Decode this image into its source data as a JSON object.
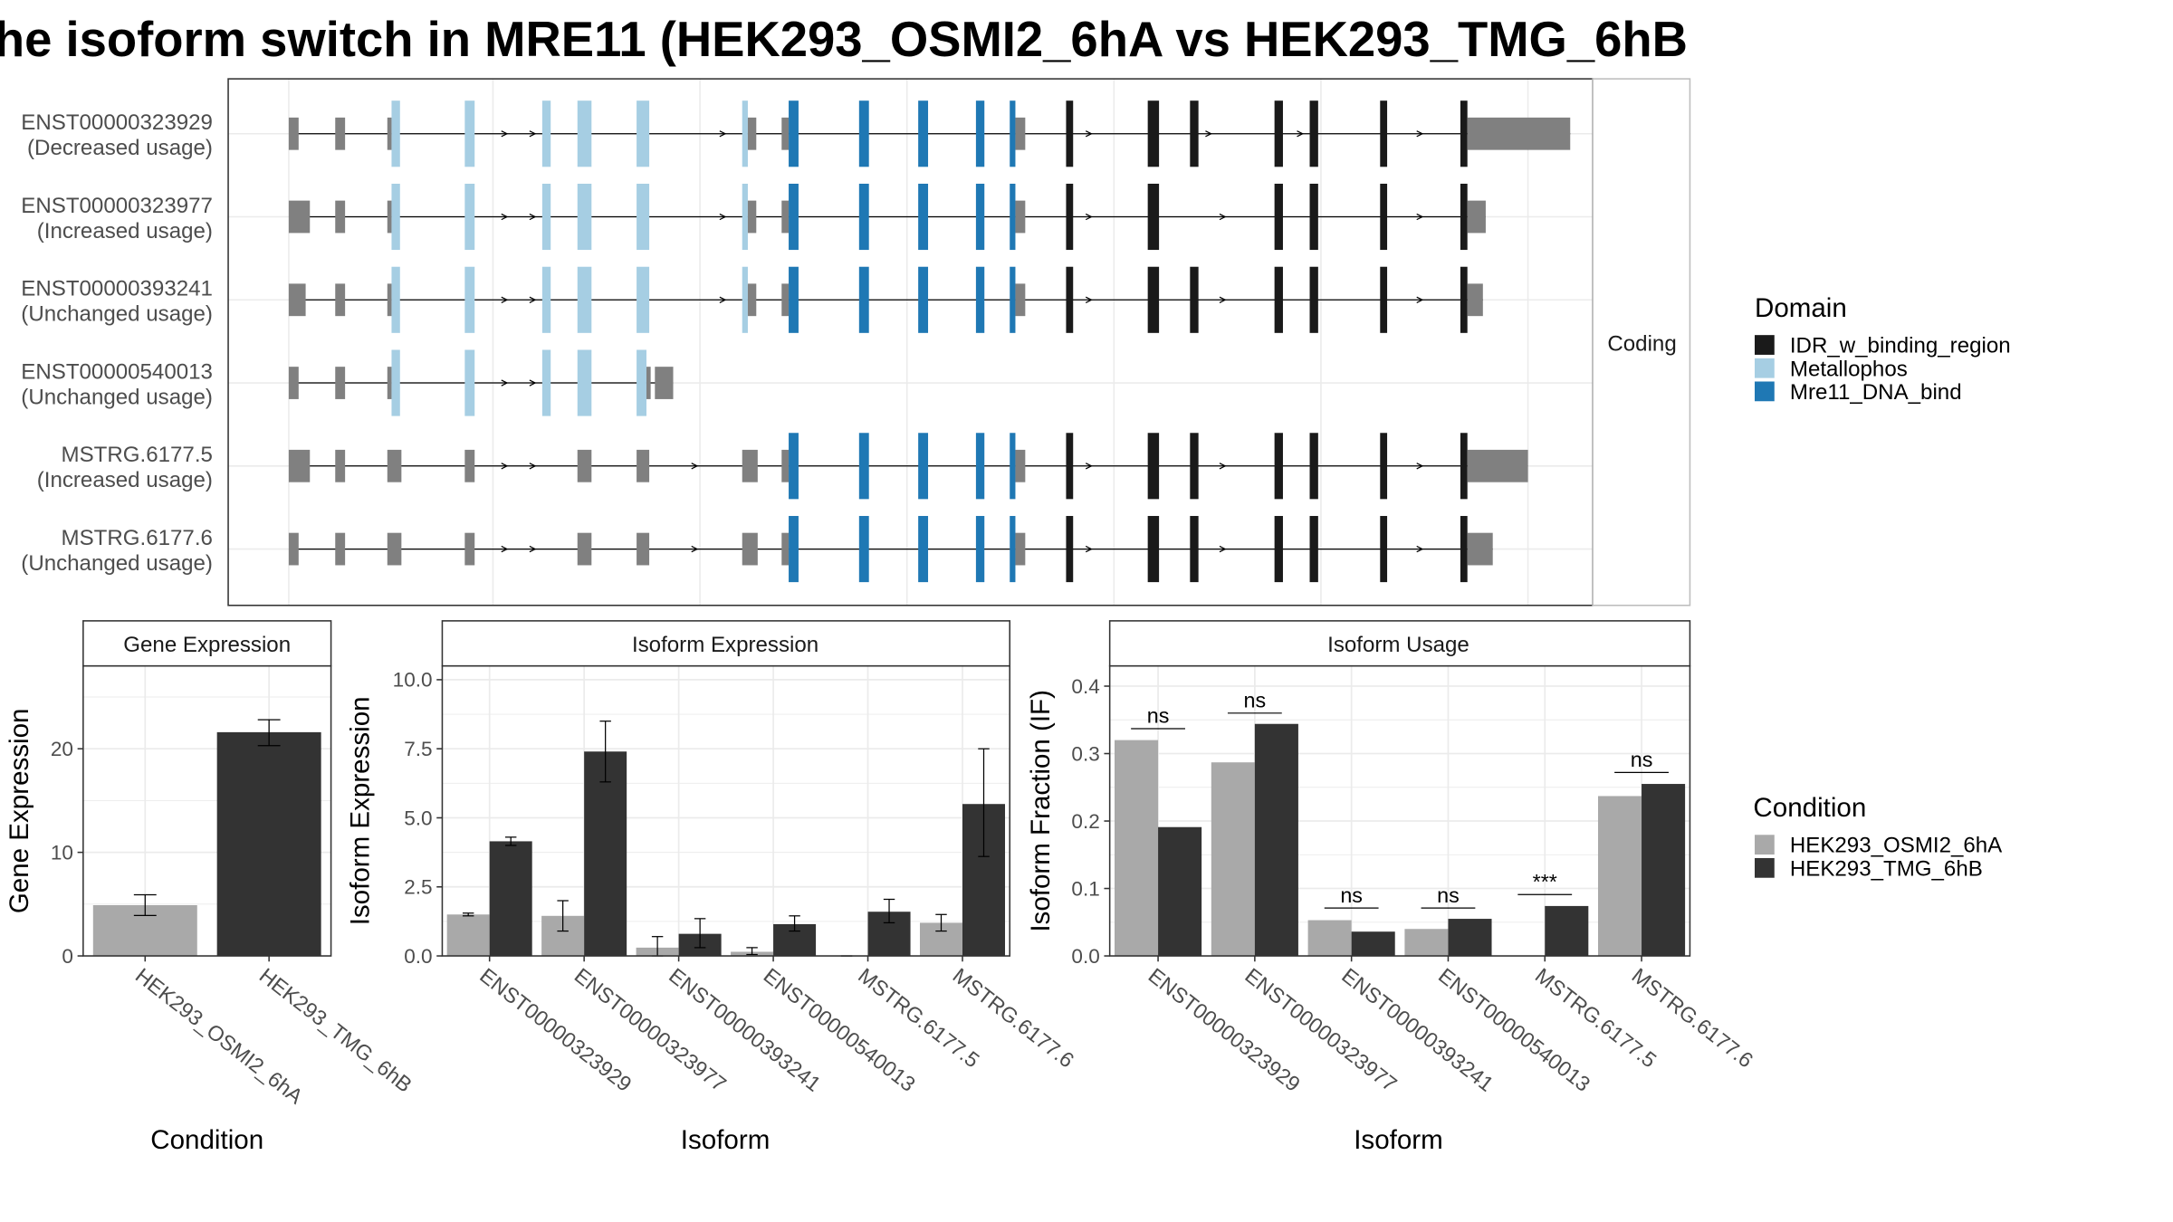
{
  "title": "he isoform switch in MRE11 (HEK293_OSMI2_6hA vs HEK293_TMG_6hB",
  "colors": {
    "IDR_w_binding_region": "#1a1a1a",
    "Metallophos": "#a6cee3",
    "Mre11_DNA_bind": "#1f78b4",
    "utr": "#808080",
    "cond_A": "#a9a9a9",
    "cond_B": "#333333",
    "strip_fill": "#ffffff",
    "grid": "#ebebeb"
  },
  "transcripts": {
    "facet_label": "Coding",
    "legend_title": "Domain",
    "legend_items": [
      "IDR_w_binding_region",
      "Metallophos",
      "Mre11_DNA_bind"
    ],
    "rows": [
      {
        "id": "ENST00000323929",
        "status": "(Decreased usage)",
        "exons": [
          [
            0,
            0.7,
            "u"
          ],
          [
            3.3,
            4.0,
            "u"
          ],
          [
            7.0,
            7.3,
            "u"
          ],
          [
            7.3,
            7.9,
            "M"
          ],
          [
            12.5,
            13.2,
            "M"
          ],
          [
            18.0,
            18.6,
            "M"
          ],
          [
            20.5,
            21.5,
            "M"
          ],
          [
            24.7,
            25.6,
            "M"
          ],
          [
            32.2,
            32.6,
            "M"
          ],
          [
            32.6,
            33.2,
            "u"
          ],
          [
            35.0,
            35.5,
            "u"
          ],
          [
            35.5,
            36.2,
            "D"
          ],
          [
            40.5,
            41.2,
            "D"
          ],
          [
            44.7,
            45.4,
            "D"
          ],
          [
            48.8,
            49.4,
            "D"
          ],
          [
            51.2,
            51.6,
            "D"
          ],
          [
            51.6,
            52.3,
            "u"
          ],
          [
            55.2,
            55.7,
            "I"
          ],
          [
            61.0,
            61.8,
            "I"
          ],
          [
            64.0,
            64.6,
            "I"
          ],
          [
            70.0,
            70.6,
            "I"
          ],
          [
            72.5,
            73.1,
            "I"
          ],
          [
            77.5,
            78.0,
            "I"
          ],
          [
            83.2,
            83.7,
            "I"
          ],
          [
            83.7,
            91.0,
            "u"
          ]
        ],
        "arrows": [
          15.5,
          17.5,
          31.0,
          57.0,
          65.5,
          72.0,
          80.5
        ]
      },
      {
        "id": "ENST00000323977",
        "status": "(Increased usage)",
        "exons": [
          [
            0,
            1.5,
            "u"
          ],
          [
            3.3,
            4.0,
            "u"
          ],
          [
            7.0,
            7.3,
            "u"
          ],
          [
            7.3,
            7.9,
            "M"
          ],
          [
            12.5,
            13.2,
            "M"
          ],
          [
            18.0,
            18.6,
            "M"
          ],
          [
            20.5,
            21.5,
            "M"
          ],
          [
            24.7,
            25.6,
            "M"
          ],
          [
            32.2,
            32.6,
            "M"
          ],
          [
            32.6,
            33.2,
            "u"
          ],
          [
            35.0,
            35.5,
            "u"
          ],
          [
            35.5,
            36.2,
            "D"
          ],
          [
            40.5,
            41.2,
            "D"
          ],
          [
            44.7,
            45.4,
            "D"
          ],
          [
            48.8,
            49.4,
            "D"
          ],
          [
            51.2,
            51.6,
            "D"
          ],
          [
            51.6,
            52.3,
            "u"
          ],
          [
            55.2,
            55.7,
            "I"
          ],
          [
            61.0,
            61.8,
            "I"
          ],
          [
            70.0,
            70.6,
            "I"
          ],
          [
            72.5,
            73.1,
            "I"
          ],
          [
            77.5,
            78.0,
            "I"
          ],
          [
            83.2,
            83.7,
            "I"
          ],
          [
            83.7,
            85.0,
            "u"
          ]
        ],
        "arrows": [
          15.5,
          17.5,
          31.0,
          57.0,
          66.5,
          80.5
        ]
      },
      {
        "id": "ENST00000393241",
        "status": "(Unchanged usage)",
        "exons": [
          [
            0,
            1.2,
            "u"
          ],
          [
            3.3,
            4.0,
            "u"
          ],
          [
            7.0,
            7.3,
            "u"
          ],
          [
            7.3,
            7.9,
            "M"
          ],
          [
            12.5,
            13.2,
            "M"
          ],
          [
            18.0,
            18.6,
            "M"
          ],
          [
            20.5,
            21.5,
            "M"
          ],
          [
            24.7,
            25.6,
            "M"
          ],
          [
            32.2,
            32.6,
            "M"
          ],
          [
            32.6,
            33.2,
            "u"
          ],
          [
            35.0,
            35.5,
            "u"
          ],
          [
            35.5,
            36.2,
            "D"
          ],
          [
            40.5,
            41.2,
            "D"
          ],
          [
            44.7,
            45.4,
            "D"
          ],
          [
            48.8,
            49.4,
            "D"
          ],
          [
            51.2,
            51.6,
            "D"
          ],
          [
            51.6,
            52.3,
            "u"
          ],
          [
            55.2,
            55.7,
            "I"
          ],
          [
            61.0,
            61.8,
            "I"
          ],
          [
            64.0,
            64.6,
            "I"
          ],
          [
            70.0,
            70.6,
            "I"
          ],
          [
            72.5,
            73.1,
            "I"
          ],
          [
            77.5,
            78.0,
            "I"
          ],
          [
            83.2,
            83.7,
            "I"
          ],
          [
            83.7,
            84.8,
            "u"
          ]
        ],
        "arrows": [
          15.5,
          17.5,
          31.0,
          57.0,
          66.5,
          80.5
        ]
      },
      {
        "id": "ENST00000540013",
        "status": "(Unchanged usage)",
        "exons": [
          [
            0,
            0.7,
            "u"
          ],
          [
            3.3,
            4.0,
            "u"
          ],
          [
            7.0,
            7.3,
            "u"
          ],
          [
            7.3,
            7.9,
            "M"
          ],
          [
            12.5,
            13.2,
            "M"
          ],
          [
            18.0,
            18.6,
            "M"
          ],
          [
            20.5,
            21.5,
            "M"
          ],
          [
            24.7,
            25.4,
            "M"
          ],
          [
            25.4,
            25.7,
            "u"
          ],
          [
            26.0,
            27.3,
            "u"
          ]
        ],
        "arrows": [
          15.5,
          17.5
        ]
      },
      {
        "id": "MSTRG.6177.5",
        "status": "(Increased usage)",
        "exons": [
          [
            0,
            1.5,
            "u"
          ],
          [
            3.3,
            4.0,
            "u"
          ],
          [
            7.0,
            8.0,
            "u"
          ],
          [
            12.5,
            13.2,
            "u"
          ],
          [
            20.5,
            21.5,
            "u"
          ],
          [
            24.7,
            25.6,
            "u"
          ],
          [
            32.2,
            33.3,
            "u"
          ],
          [
            35.0,
            35.5,
            "u"
          ],
          [
            35.5,
            36.2,
            "D"
          ],
          [
            40.5,
            41.2,
            "D"
          ],
          [
            44.7,
            45.4,
            "D"
          ],
          [
            48.8,
            49.4,
            "D"
          ],
          [
            51.2,
            51.6,
            "D"
          ],
          [
            51.6,
            52.3,
            "u"
          ],
          [
            55.2,
            55.7,
            "I"
          ],
          [
            61.0,
            61.8,
            "I"
          ],
          [
            64.0,
            64.6,
            "I"
          ],
          [
            70.0,
            70.6,
            "I"
          ],
          [
            72.5,
            73.1,
            "I"
          ],
          [
            77.5,
            78.0,
            "I"
          ],
          [
            83.2,
            83.7,
            "I"
          ],
          [
            83.7,
            88.0,
            "u"
          ]
        ],
        "arrows": [
          15.5,
          17.5,
          29.0,
          57.0,
          66.5,
          80.5
        ]
      },
      {
        "id": "MSTRG.6177.6",
        "status": "(Unchanged usage)",
        "exons": [
          [
            0,
            0.7,
            "u"
          ],
          [
            3.3,
            4.0,
            "u"
          ],
          [
            7.0,
            8.0,
            "u"
          ],
          [
            12.5,
            13.2,
            "u"
          ],
          [
            20.5,
            21.5,
            "u"
          ],
          [
            24.7,
            25.6,
            "u"
          ],
          [
            32.2,
            33.3,
            "u"
          ],
          [
            35.0,
            35.5,
            "u"
          ],
          [
            35.5,
            36.2,
            "D"
          ],
          [
            40.5,
            41.2,
            "D"
          ],
          [
            44.7,
            45.4,
            "D"
          ],
          [
            48.8,
            49.4,
            "D"
          ],
          [
            51.2,
            51.6,
            "D"
          ],
          [
            51.6,
            52.3,
            "u"
          ],
          [
            55.2,
            55.7,
            "I"
          ],
          [
            61.0,
            61.8,
            "I"
          ],
          [
            64.0,
            64.6,
            "I"
          ],
          [
            70.0,
            70.6,
            "I"
          ],
          [
            72.5,
            73.1,
            "I"
          ],
          [
            77.5,
            78.0,
            "I"
          ],
          [
            83.2,
            83.7,
            "I"
          ],
          [
            83.7,
            85.5,
            "u"
          ]
        ],
        "arrows": [
          15.5,
          17.5,
          29.0,
          57.0,
          66.5,
          80.5
        ]
      }
    ]
  },
  "chart_data": [
    {
      "type": "bar",
      "title": "Gene Expression",
      "xlabel": "Condition",
      "ylabel": "Gene Expression",
      "categories": [
        "HEK293_OSMI2_6hA",
        "HEK293_TMG_6hB"
      ],
      "values": [
        4.9,
        21.6
      ],
      "errors": [
        [
          3.9,
          5.9
        ],
        [
          20.3,
          22.8
        ]
      ],
      "ylim": [
        0,
        28
      ],
      "yticks": [
        "0",
        "10",
        "20"
      ],
      "grid": true
    },
    {
      "type": "bar",
      "title": "Isoform Expression",
      "xlabel": "Isoform",
      "ylabel": "Isoform Expression",
      "categories": [
        "ENST00000323929",
        "ENST00000323977",
        "ENST00000393241",
        "ENST00000540013",
        "MSTRG.6177.5",
        "MSTRG.6177.6"
      ],
      "series": [
        {
          "name": "HEK293_OSMI2_6hA",
          "values": [
            1.5,
            1.45,
            0.3,
            0.15,
            0.0,
            1.2
          ],
          "errors": [
            [
              1.45,
              1.55
            ],
            [
              0.9,
              2.0
            ],
            [
              0.0,
              0.7
            ],
            [
              0.05,
              0.3
            ],
            [
              0.0,
              0.0
            ],
            [
              0.9,
              1.5
            ]
          ]
        },
        {
          "name": "HEK293_TMG_6hB",
          "values": [
            4.15,
            7.4,
            0.8,
            1.15,
            1.6,
            5.5
          ],
          "errors": [
            [
              4.0,
              4.3
            ],
            [
              6.3,
              8.5
            ],
            [
              0.3,
              1.35
            ],
            [
              0.9,
              1.45
            ],
            [
              1.2,
              2.05
            ],
            [
              3.6,
              7.5
            ]
          ]
        }
      ],
      "ylim": [
        0,
        10.5
      ],
      "yticks": [
        "0.0",
        "2.5",
        "5.0",
        "7.5",
        "10.0"
      ],
      "grid": true
    },
    {
      "type": "bar",
      "title": "Isoform Usage",
      "xlabel": "Isoform",
      "ylabel": "Isoform Fraction (IF)",
      "categories": [
        "ENST00000323929",
        "ENST00000323977",
        "ENST00000393241",
        "ENST00000540013",
        "MSTRG.6177.5",
        "MSTRG.6177.6"
      ],
      "series": [
        {
          "name": "HEK293_OSMI2_6hA",
          "values": [
            0.32,
            0.287,
            0.053,
            0.04,
            0.0,
            0.237
          ]
        },
        {
          "name": "HEK293_TMG_6hB",
          "values": [
            0.191,
            0.344,
            0.036,
            0.055,
            0.074,
            0.255
          ]
        }
      ],
      "significance": [
        "ns",
        "ns",
        "ns",
        "ns",
        "***",
        "ns"
      ],
      "sig_levels": [
        0.337,
        0.36,
        0.071,
        0.071,
        0.091,
        0.272
      ],
      "ylim": [
        0,
        0.43
      ],
      "yticks": [
        "0.0",
        "0.1",
        "0.2",
        "0.3",
        "0.4"
      ],
      "grid": true
    }
  ],
  "condition_legend": {
    "title": "Condition",
    "items": [
      "HEK293_OSMI2_6hA",
      "HEK293_TMG_6hB"
    ]
  }
}
